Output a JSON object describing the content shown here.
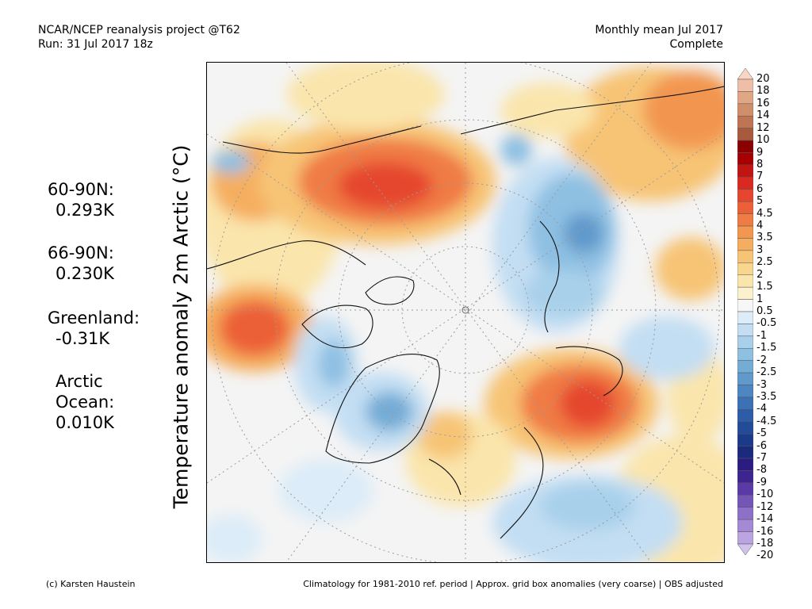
{
  "header": {
    "project": "NCAR/NCEP reanalysis project @T62",
    "run": "Run: 31 Jul 2017 18z",
    "period": "Monthly mean Jul 2017",
    "status": "Complete"
  },
  "y_axis_label": "Temperature anomaly 2m Arctic (°C)",
  "stats": [
    {
      "label": "60-90N:",
      "value": "0.293K"
    },
    {
      "label": "66-90N:",
      "value": "0.230K"
    },
    {
      "label": "Greenland:",
      "value": "-0.31K"
    },
    {
      "label": "Arctic",
      "label2": "Ocean:",
      "value": "0.010K"
    }
  ],
  "colorbar": {
    "labels": [
      "20",
      "18",
      "16",
      "14",
      "12",
      "10",
      "9",
      "8",
      "7",
      "6",
      "5",
      "4.5",
      "4",
      "3.5",
      "3",
      "2.5",
      "2",
      "1.5",
      "1",
      "0.5",
      "-0.5",
      "-1",
      "-1.5",
      "-2",
      "-2.5",
      "-3",
      "-3.5",
      "-4",
      "-4.5",
      "-5",
      "-6",
      "-7",
      "-8",
      "-9",
      "-10",
      "-12",
      "-14",
      "-16",
      "-18",
      "-20"
    ],
    "colors": [
      "#f9d6c4",
      "#eebfa6",
      "#e0a785",
      "#cf8f6a",
      "#bf7554",
      "#a85a3c",
      "#8b0000",
      "#a80000",
      "#c31414",
      "#d92a22",
      "#e5462f",
      "#ec6038",
      "#f07c45",
      "#f29650",
      "#f5ae5f",
      "#f7c476",
      "#f8d68f",
      "#fae5ac",
      "#fcf1cd",
      "#f7f7f7",
      "#dcecf8",
      "#c3def3",
      "#a8d0ea",
      "#8ec0e2",
      "#75acd6",
      "#6099cb",
      "#4d86c0",
      "#3c72b5",
      "#2d5da8",
      "#224b9a",
      "#1b3b8a",
      "#1a2a7c",
      "#2a1c80",
      "#3e2490",
      "#5a3aa6",
      "#7455b8",
      "#8d70c8",
      "#a48ad4",
      "#baa5e0",
      "#d2c2ee"
    ]
  },
  "footer": {
    "credit": "(c) Karsten Haustein",
    "note": "Climatology for 1981-2010 ref. period | Approx. grid box anomalies (very coarse) | OBS adjusted"
  }
}
